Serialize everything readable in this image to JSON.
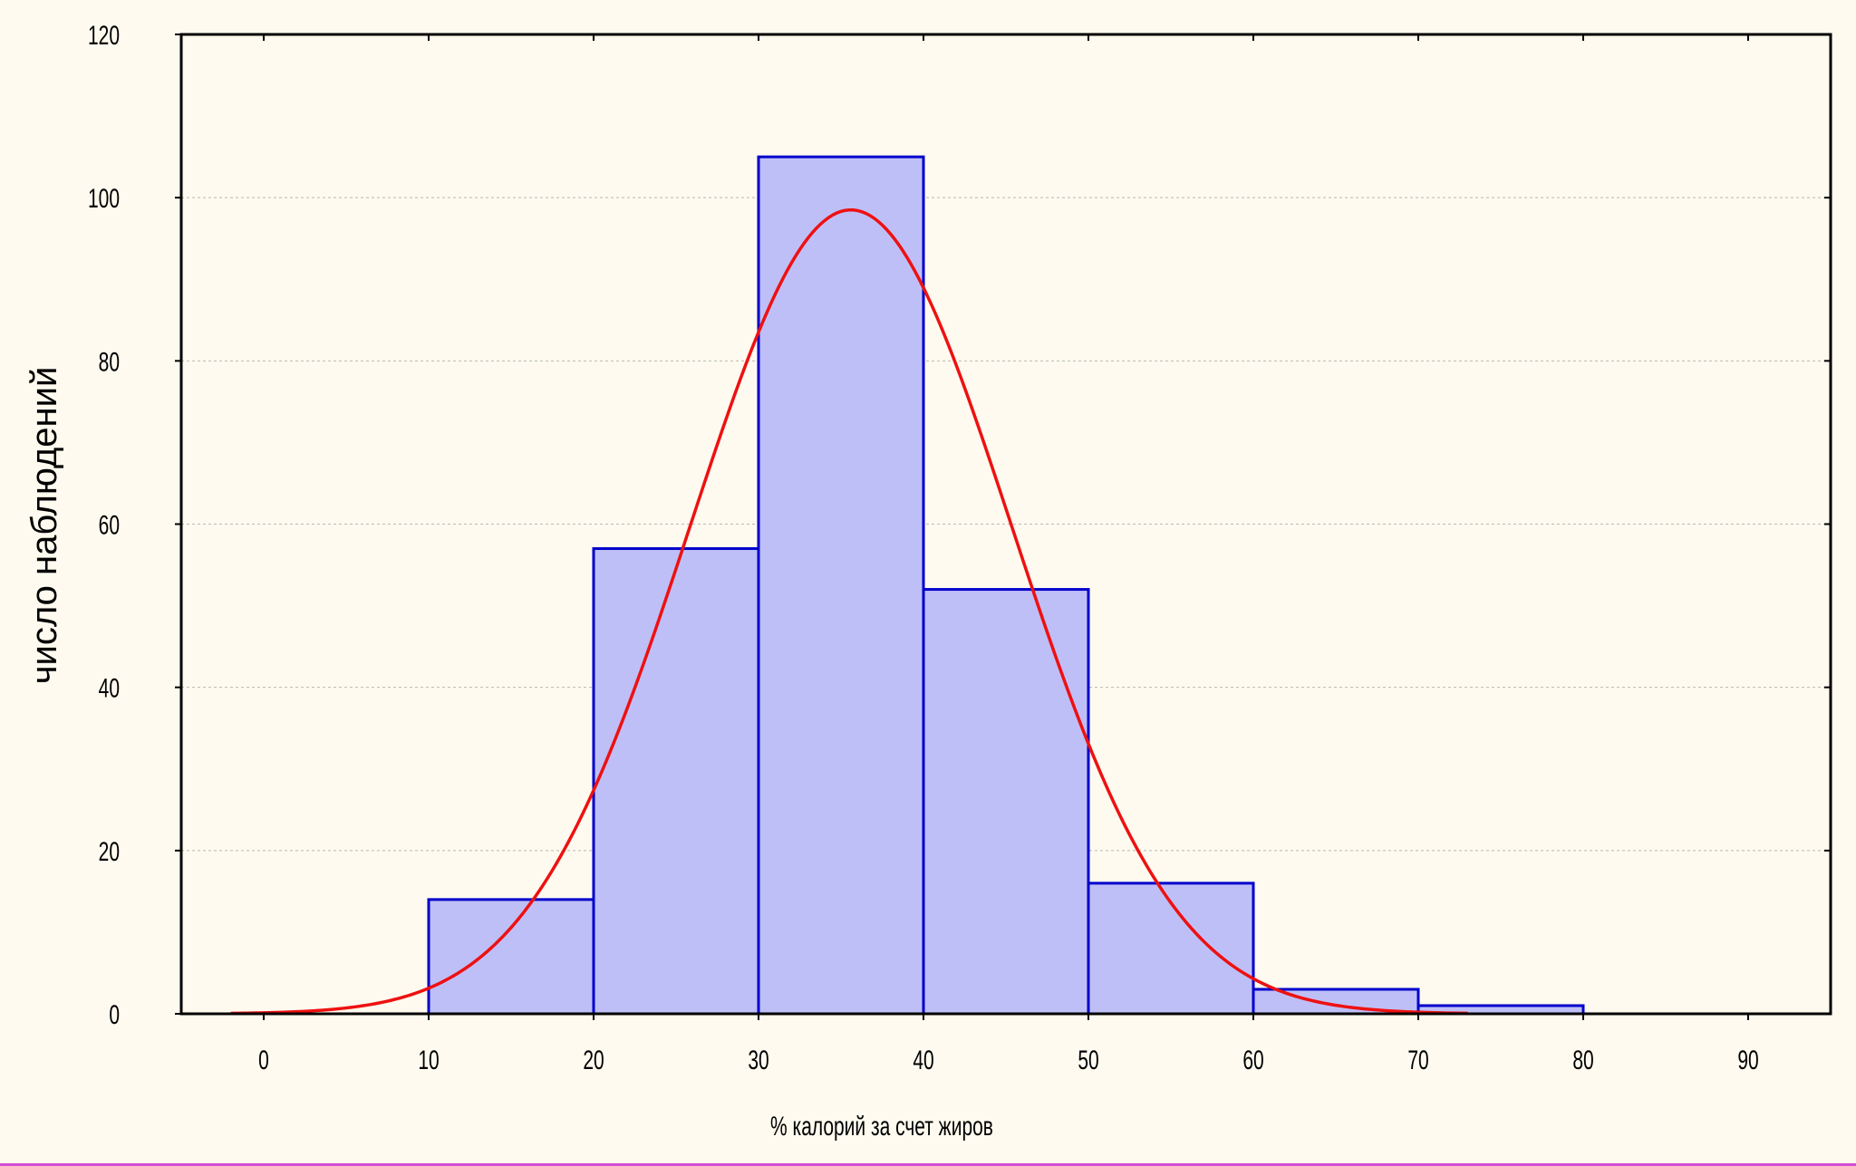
{
  "chart_data": {
    "type": "bar",
    "subtype": "histogram-with-normal-fit",
    "title": "",
    "xlabel": "% калорий за счет жиров",
    "ylabel": "число наблюдений",
    "xlim": [
      -5,
      95
    ],
    "ylim": [
      0,
      120
    ],
    "x_ticks": [
      "0",
      "10",
      "20",
      "30",
      "40",
      "50",
      "60",
      "70",
      "80",
      "90"
    ],
    "y_ticks": [
      "0",
      "20",
      "40",
      "60",
      "80",
      "100",
      "120"
    ],
    "grid": "horizontal-dashed",
    "bins": [
      {
        "from": 10,
        "to": 20,
        "count": 14
      },
      {
        "from": 20,
        "to": 30,
        "count": 57
      },
      {
        "from": 30,
        "to": 40,
        "count": 105
      },
      {
        "from": 40,
        "to": 50,
        "count": 52
      },
      {
        "from": 50,
        "to": 60,
        "count": 16
      },
      {
        "from": 60,
        "to": 70,
        "count": 3
      },
      {
        "from": 70,
        "to": 80,
        "count": 1
      }
    ],
    "normal_curve": {
      "mean": 35.6,
      "sd": 9.75,
      "peak": 98.5,
      "x_range": [
        -2,
        73
      ]
    },
    "colors": {
      "bar_fill": "#bfbff8",
      "bar_stroke": "#0000cc",
      "curve": "#ee1111",
      "grid": "#b8b8b8",
      "background": "#fefaef",
      "axis": "#000000"
    }
  }
}
